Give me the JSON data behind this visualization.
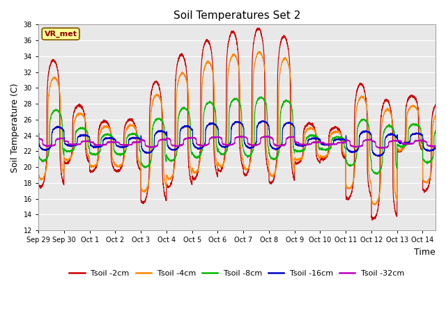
{
  "title": "Soil Temperatures Set 2",
  "xlabel": "Time",
  "ylabel": "Soil Temperature (C)",
  "ylim": [
    12,
    38
  ],
  "yticks": [
    12,
    14,
    16,
    18,
    20,
    22,
    24,
    26,
    28,
    30,
    32,
    34,
    36,
    38
  ],
  "bg_color": "#e8e8e8",
  "series_colors": [
    "#cc0000",
    "#ff8800",
    "#00bb00",
    "#0000cc",
    "#bb00bb"
  ],
  "series_labels": [
    "Tsoil -2cm",
    "Tsoil -4cm",
    "Tsoil -8cm",
    "Tsoil -16cm",
    "Tsoil -32cm"
  ],
  "vr_met_label": "VR_met",
  "x_tick_labels": [
    "Sep 29",
    "Sep 30",
    "Oct 1",
    "Oct 2",
    "Oct 3",
    "Oct 4",
    "Oct 5",
    "Oct 6",
    "Oct 7",
    "Oct 8",
    "Oct 9",
    "Oct 10",
    "Oct 11",
    "Oct 12",
    "Oct 13",
    "Oct 14"
  ],
  "n_days": 15.5,
  "ppd": 288,
  "day_peaks_2cm": [
    33.5,
    27.8,
    25.8,
    26.0,
    30.8,
    34.2,
    36.0,
    37.1,
    37.5,
    36.5,
    25.5,
    25.0,
    30.5,
    28.5,
    29.0,
    28.0
  ],
  "day_troughs_2cm": [
    17.5,
    20.5,
    19.5,
    19.5,
    15.5,
    17.5,
    18.5,
    19.5,
    19.0,
    18.0,
    20.5,
    21.0,
    16.0,
    13.5,
    22.0,
    17.0
  ],
  "day_mids_2cm": [
    23.0,
    23.0,
    22.8,
    22.5,
    22.5,
    22.5,
    22.5,
    22.5,
    22.3,
    22.2,
    22.0,
    22.0,
    22.0,
    21.8,
    22.5,
    22.0
  ],
  "peak_hour": 14.0,
  "trough_hour": 6.0
}
